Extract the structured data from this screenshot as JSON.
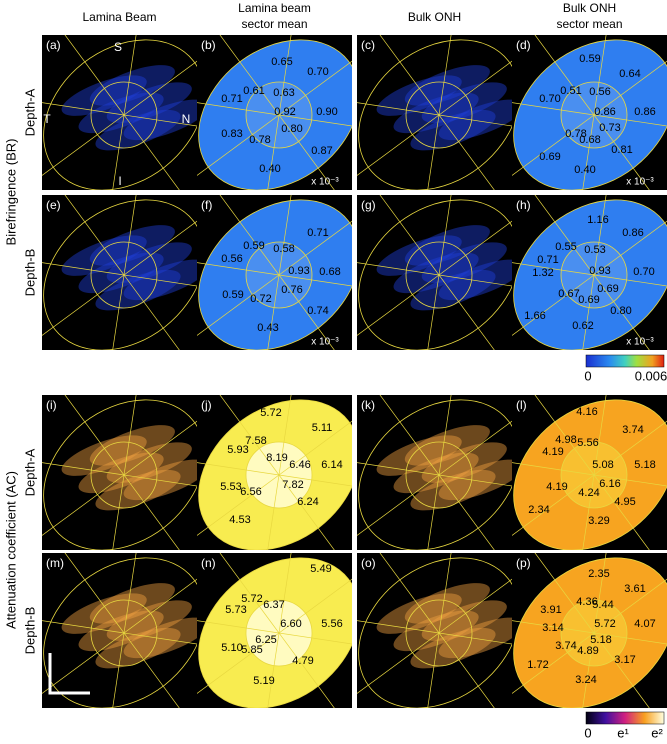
{
  "headers": [
    [
      "Lamina Beam"
    ],
    [
      "Lamina beam",
      "sector mean"
    ],
    [
      "Bulk ONH"
    ],
    [
      "Bulk ONH",
      "sector mean"
    ]
  ],
  "row_labels": [
    "Birefringence (BR)",
    "Attenuation coefficient (AC)"
  ],
  "depth_labels": [
    "Depth-A",
    "Depth-B",
    "Depth-A",
    "Depth-B"
  ],
  "orientation": [
    "S",
    "T",
    "N",
    "I"
  ],
  "panels": [
    {
      "label": "(a)"
    },
    {
      "label": "(b)",
      "values": [
        "0.65",
        "0.70",
        "0.71",
        "0.61",
        "0.63",
        "0.92",
        "0.90",
        "0.83",
        "0.80",
        "0.78",
        "0.87",
        "0.40"
      ],
      "scale": "x 10⁻³"
    },
    {
      "label": "(c)"
    },
    {
      "label": "(d)",
      "values": [
        "0.59",
        "0.64",
        "0.70",
        "0.51",
        "0.56",
        "0.86",
        "0.86",
        "0.78",
        "0.73",
        "0.68",
        "0.81",
        "0.69",
        "0.40"
      ],
      "scale": "x 10⁻³"
    },
    {
      "label": "(e)"
    },
    {
      "label": "(f)",
      "values": [
        "0.71",
        "0.59",
        "0.58",
        "0.56",
        "0.93",
        "0.68",
        "0.76",
        "0.59",
        "0.72",
        "0.74",
        "0.43"
      ],
      "scale": "x 10⁻³"
    },
    {
      "label": "(g)"
    },
    {
      "label": "(h)",
      "values": [
        "1.16",
        "0.86",
        "0.55",
        "0.53",
        "0.71",
        "1.32",
        "0.93",
        "0.70",
        "0.67",
        "0.69",
        "0.69",
        "0.80",
        "0.62",
        "1.66"
      ],
      "scale": "x 10⁻³"
    },
    {
      "label": "(i)"
    },
    {
      "label": "(j)",
      "values": [
        "5.72",
        "5.11",
        "7.58",
        "8.19",
        "5.93",
        "6.46",
        "6.14",
        "7.82",
        "5.53",
        "6.56",
        "6.24",
        "4.53"
      ]
    },
    {
      "label": "(k)"
    },
    {
      "label": "(l)",
      "values": [
        "4.16",
        "3.74",
        "4.98",
        "5.56",
        "4.19",
        "5.08",
        "5.18",
        "6.16",
        "4.19",
        "4.24",
        "4.95",
        "2.34",
        "3.29"
      ]
    },
    {
      "label": "(m)"
    },
    {
      "label": "(n)",
      "values": [
        "5.49",
        "5.72",
        "6.37",
        "5.73",
        "6.60",
        "5.56",
        "6.25",
        "5.10",
        "5.85",
        "4.79",
        "5.19"
      ]
    },
    {
      "label": "(o)"
    },
    {
      "label": "(p)",
      "values": [
        "2.35",
        "3.61",
        "4.36",
        "3.91",
        "5.44",
        "4.07",
        "3.14",
        "5.72",
        "5.18",
        "3.74",
        "4.89",
        "3.17",
        "1.72",
        "3.24"
      ]
    }
  ],
  "colorbars": [
    {
      "labels": [
        "0",
        "0.006"
      ]
    },
    {
      "labels": [
        "0",
        "e¹",
        "e²"
      ]
    }
  ]
}
